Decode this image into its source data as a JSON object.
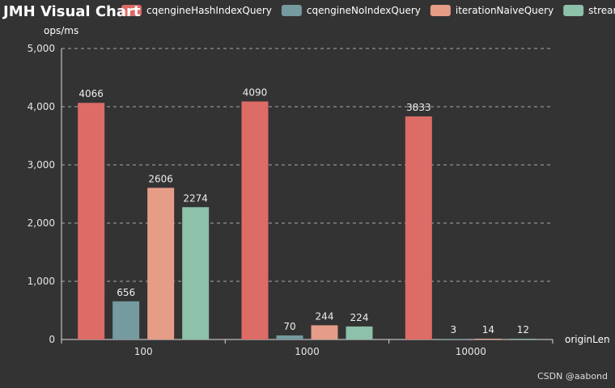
{
  "chart_data": {
    "type": "bar",
    "title": "JMH Visual Chart",
    "xlabel": "originLen",
    "ylabel": "ops/ms",
    "categories": [
      "100",
      "1000",
      "10000"
    ],
    "ylim": [
      0,
      5000
    ],
    "yticks": [
      0,
      1000,
      2000,
      3000,
      4000,
      5000
    ],
    "ytick_labels": [
      "0",
      "1,000",
      "2,000",
      "3,000",
      "4,000",
      "5,000"
    ],
    "grid": true,
    "legend_position": "top",
    "series": [
      {
        "name": "cqengineHashIndexQuery",
        "color": "#dd6b66",
        "values": [
          4066,
          4090,
          3833
        ]
      },
      {
        "name": "cqengineNoIndexQuery",
        "color": "#759aa0",
        "values": [
          656,
          70,
          3
        ]
      },
      {
        "name": "iterationNaiveQuery",
        "color": "#e69d87",
        "values": [
          2606,
          244,
          14
        ]
      },
      {
        "name": "streamQuery",
        "color": "#8dc1a9",
        "values": [
          2274,
          224,
          12
        ]
      }
    ]
  },
  "watermark": "CSDN @aabond"
}
